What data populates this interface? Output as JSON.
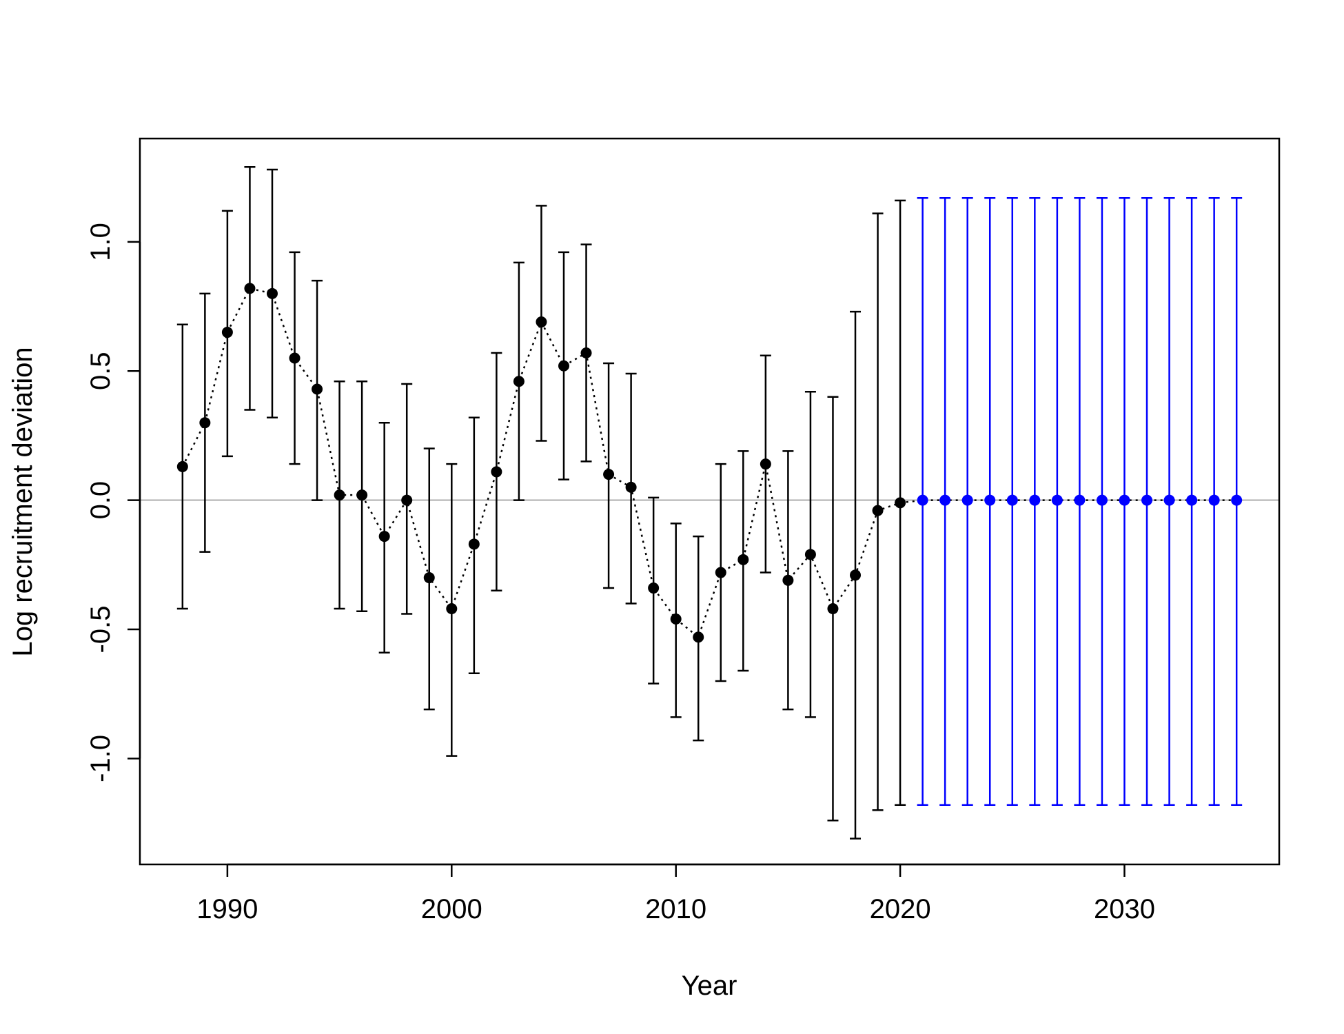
{
  "chart_data": {
    "type": "scatter",
    "title": "",
    "xlabel": "Year",
    "ylabel": "Log recruitment deviation",
    "xlim": [
      1986.1,
      2036.9
    ],
    "ylim": [
      -1.41,
      1.4
    ],
    "x_ticks": [
      1990,
      2000,
      2010,
      2020,
      2030
    ],
    "x_tick_labels": [
      "1990",
      "2000",
      "2010",
      "2020",
      "2030"
    ],
    "y_ticks": [
      -1.0,
      -0.5,
      0.0,
      0.5,
      1.0
    ],
    "y_tick_labels": [
      "-1.0",
      "-0.5",
      "0.0",
      "0.5",
      "1.0"
    ],
    "reference_line": {
      "y": 0,
      "color": "#bebebe"
    },
    "grid": false,
    "legend": "none",
    "series": [
      {
        "color": "#000000",
        "line_style": "dotted",
        "points": [
          {
            "x": 1988,
            "y": 0.13,
            "lo": -0.42,
            "hi": 0.68
          },
          {
            "x": 1989,
            "y": 0.3,
            "lo": -0.2,
            "hi": 0.8
          },
          {
            "x": 1990,
            "y": 0.65,
            "lo": 0.17,
            "hi": 1.12
          },
          {
            "x": 1991,
            "y": 0.82,
            "lo": 0.35,
            "hi": 1.29
          },
          {
            "x": 1992,
            "y": 0.8,
            "lo": 0.32,
            "hi": 1.28
          },
          {
            "x": 1993,
            "y": 0.55,
            "lo": 0.14,
            "hi": 0.96
          },
          {
            "x": 1994,
            "y": 0.43,
            "lo": 0.0,
            "hi": 0.85
          },
          {
            "x": 1995,
            "y": 0.02,
            "lo": -0.42,
            "hi": 0.46
          },
          {
            "x": 1996,
            "y": 0.02,
            "lo": -0.43,
            "hi": 0.46
          },
          {
            "x": 1997,
            "y": -0.14,
            "lo": -0.59,
            "hi": 0.3
          },
          {
            "x": 1998,
            "y": 0.0,
            "lo": -0.44,
            "hi": 0.45
          },
          {
            "x": 1999,
            "y": -0.3,
            "lo": -0.81,
            "hi": 0.2
          },
          {
            "x": 2000,
            "y": -0.42,
            "lo": -0.99,
            "hi": 0.14
          },
          {
            "x": 2001,
            "y": -0.17,
            "lo": -0.67,
            "hi": 0.32
          },
          {
            "x": 2002,
            "y": 0.11,
            "lo": -0.35,
            "hi": 0.57
          },
          {
            "x": 2003,
            "y": 0.46,
            "lo": 0.0,
            "hi": 0.92
          },
          {
            "x": 2004,
            "y": 0.69,
            "lo": 0.23,
            "hi": 1.14
          },
          {
            "x": 2005,
            "y": 0.52,
            "lo": 0.08,
            "hi": 0.96
          },
          {
            "x": 2006,
            "y": 0.57,
            "lo": 0.15,
            "hi": 0.99
          },
          {
            "x": 2007,
            "y": 0.1,
            "lo": -0.34,
            "hi": 0.53
          },
          {
            "x": 2008,
            "y": 0.05,
            "lo": -0.4,
            "hi": 0.49
          },
          {
            "x": 2009,
            "y": -0.34,
            "lo": -0.71,
            "hi": 0.01
          },
          {
            "x": 2010,
            "y": -0.46,
            "lo": -0.84,
            "hi": -0.09
          },
          {
            "x": 2011,
            "y": -0.53,
            "lo": -0.93,
            "hi": -0.14
          },
          {
            "x": 2012,
            "y": -0.28,
            "lo": -0.7,
            "hi": 0.14
          },
          {
            "x": 2013,
            "y": -0.23,
            "lo": -0.66,
            "hi": 0.19
          },
          {
            "x": 2014,
            "y": 0.14,
            "lo": -0.28,
            "hi": 0.56
          },
          {
            "x": 2015,
            "y": -0.31,
            "lo": -0.81,
            "hi": 0.19
          },
          {
            "x": 2016,
            "y": -0.21,
            "lo": -0.84,
            "hi": 0.42
          },
          {
            "x": 2017,
            "y": -0.42,
            "lo": -1.24,
            "hi": 0.4
          },
          {
            "x": 2018,
            "y": -0.29,
            "lo": -1.31,
            "hi": 0.73
          },
          {
            "x": 2019,
            "y": -0.04,
            "lo": -1.2,
            "hi": 1.11
          },
          {
            "x": 2020,
            "y": -0.01,
            "lo": -1.18,
            "hi": 1.16
          }
        ]
      },
      {
        "color": "#0000ff",
        "line_style": "dotted",
        "points": [
          {
            "x": 2021,
            "y": 0.0,
            "lo": -1.18,
            "hi": 1.17
          },
          {
            "x": 2022,
            "y": 0.0,
            "lo": -1.18,
            "hi": 1.17
          },
          {
            "x": 2023,
            "y": 0.0,
            "lo": -1.18,
            "hi": 1.17
          },
          {
            "x": 2024,
            "y": 0.0,
            "lo": -1.18,
            "hi": 1.17
          },
          {
            "x": 2025,
            "y": 0.0,
            "lo": -1.18,
            "hi": 1.17
          },
          {
            "x": 2026,
            "y": 0.0,
            "lo": -1.18,
            "hi": 1.17
          },
          {
            "x": 2027,
            "y": 0.0,
            "lo": -1.18,
            "hi": 1.17
          },
          {
            "x": 2028,
            "y": 0.0,
            "lo": -1.18,
            "hi": 1.17
          },
          {
            "x": 2029,
            "y": 0.0,
            "lo": -1.18,
            "hi": 1.17
          },
          {
            "x": 2030,
            "y": 0.0,
            "lo": -1.18,
            "hi": 1.17
          },
          {
            "x": 2031,
            "y": 0.0,
            "lo": -1.18,
            "hi": 1.17
          },
          {
            "x": 2032,
            "y": 0.0,
            "lo": -1.18,
            "hi": 1.17
          },
          {
            "x": 2033,
            "y": 0.0,
            "lo": -1.18,
            "hi": 1.17
          },
          {
            "x": 2034,
            "y": 0.0,
            "lo": -1.18,
            "hi": 1.17
          },
          {
            "x": 2035,
            "y": 0.0,
            "lo": -1.18,
            "hi": 1.17
          }
        ]
      }
    ]
  }
}
